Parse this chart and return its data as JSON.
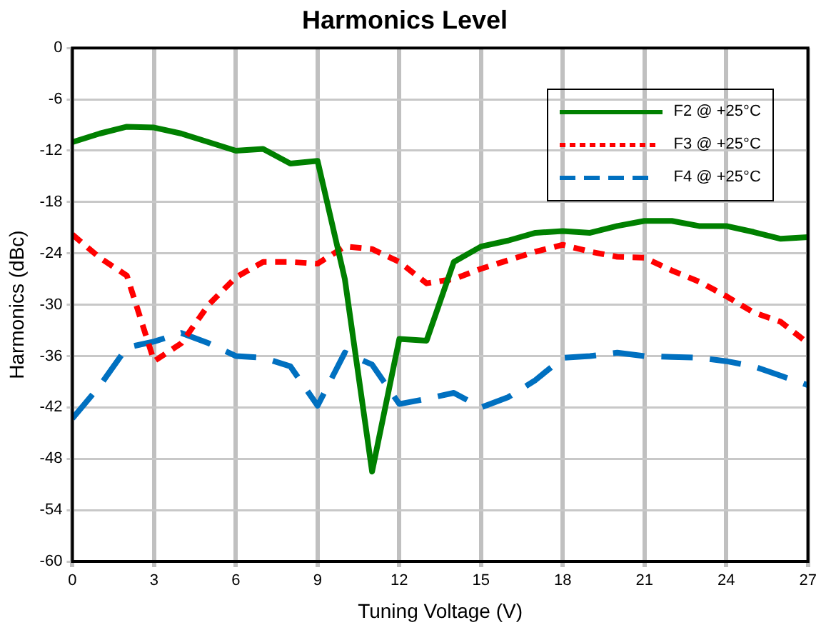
{
  "chart_data": {
    "type": "line",
    "title": "Harmonics Level",
    "xlabel": "Tuning Voltage (V)",
    "ylabel": "Harmonics (dBc)",
    "x": [
      0,
      1,
      2,
      3,
      4,
      5,
      6,
      7,
      8,
      9,
      10,
      11,
      12,
      13,
      14,
      15,
      16,
      17,
      18,
      19,
      20,
      21,
      22,
      23,
      24,
      25,
      26,
      27
    ],
    "series": [
      {
        "name": "F2 @ +25°C",
        "color": "#008000",
        "line_style": "solid",
        "values": [
          -11,
          -10,
          -9.2,
          -9.3,
          -10,
          -11,
          -12,
          -11.8,
          -13.5,
          -13.2,
          -27,
          -49.5,
          -34,
          -34.2,
          -25,
          -23.2,
          -22.5,
          -21.6,
          -21.4,
          -21.6,
          -20.8,
          -20.2,
          -20.2,
          -20.8,
          -20.8,
          -21.5,
          -22.3,
          -22.1
        ]
      },
      {
        "name": "F3 @ +25°C",
        "color": "#ff0000",
        "line_style": "dotted",
        "values": [
          -21.8,
          -24.5,
          -26.6,
          -36.6,
          -34.5,
          -30,
          -26.8,
          -25,
          -25,
          -25.2,
          -23.2,
          -23.5,
          -25,
          -27.5,
          -27,
          -25.8,
          -24.8,
          -23.8,
          -23,
          -23.8,
          -24.4,
          -24.5,
          -26,
          -27.3,
          -29,
          -30.9,
          -32,
          -34.5
        ]
      },
      {
        "name": "F4 @ +25°C",
        "color": "#0070c0",
        "line_style": "dashed",
        "values": [
          -43.3,
          -39.5,
          -35,
          -34.3,
          -33.3,
          -34.5,
          -36,
          -36.2,
          -37.2,
          -41.8,
          -35.6,
          -37,
          -41.6,
          -41,
          -40.3,
          -42,
          -40.8,
          -38.8,
          -36.2,
          -36,
          -35.6,
          -36,
          -36.1,
          -36.2,
          -36.6,
          -37.2,
          -38.3,
          -39.4
        ]
      }
    ],
    "xlim": [
      0,
      27
    ],
    "xticks": [
      0,
      3,
      6,
      9,
      12,
      15,
      18,
      21,
      24,
      27
    ],
    "ylim": [
      -60,
      0
    ],
    "yticks": [
      -60,
      -54,
      -48,
      -42,
      -36,
      -30,
      -24,
      -18,
      -12,
      -6,
      0
    ],
    "grid": true,
    "legend": "top right",
    "marker": "none"
  }
}
